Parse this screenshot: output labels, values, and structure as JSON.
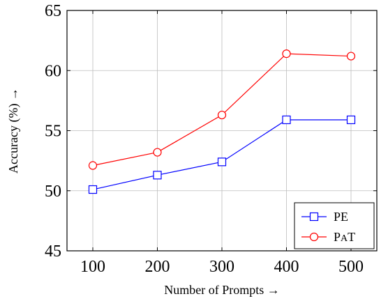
{
  "chart_data": {
    "type": "line",
    "xlabel": "Number of Prompts →",
    "ylabel": "Accuracy (%) →",
    "x": [
      100,
      200,
      300,
      400,
      500
    ],
    "xticks": [
      "100",
      "200",
      "300",
      "400",
      "500"
    ],
    "yticks": [
      "45",
      "50",
      "55",
      "60",
      "65"
    ],
    "xlim": [
      60,
      540
    ],
    "ylim": [
      45,
      65
    ],
    "grid": true,
    "legend_position": "bottom-right",
    "series": [
      {
        "name": "PE",
        "values": [
          50.1,
          51.3,
          52.4,
          55.9,
          55.9
        ],
        "color": "#0000ff",
        "marker": "square"
      },
      {
        "name": "PaT",
        "values": [
          52.1,
          53.2,
          56.3,
          61.4,
          61.2
        ],
        "color": "#ff0000",
        "marker": "circle"
      }
    ]
  }
}
